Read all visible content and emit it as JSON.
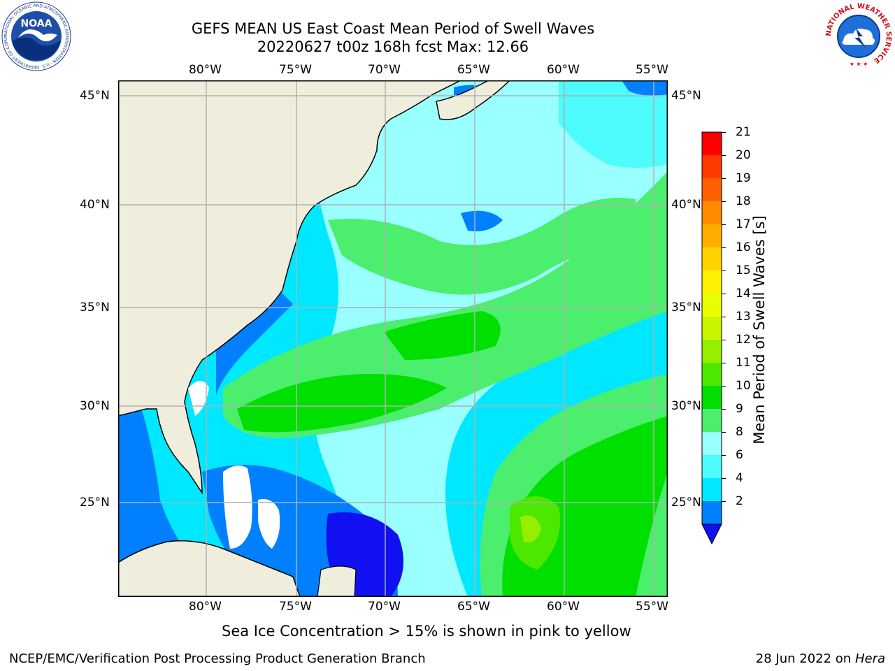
{
  "title": {
    "line1": "GEFS MEAN US East Coast Mean Period of Swell Waves",
    "line2": "20220627 t00z 168h fcst   Max: 12.66"
  },
  "map": {
    "lon_labels": [
      "80°W",
      "75°W",
      "70°W",
      "65°W",
      "60°W",
      "55°W"
    ],
    "lat_labels": [
      "45°N",
      "40°N",
      "35°N",
      "30°N",
      "25°N"
    ],
    "land_color": "#efeedc",
    "grid_color": "#b0b0b0"
  },
  "colorbar": {
    "label": "Mean Period of Swell Waves [s]",
    "ticks": [
      "21",
      "20",
      "19",
      "18",
      "17",
      "16",
      "15",
      "14",
      "13",
      "12",
      "11",
      "10",
      "9",
      "8",
      "6",
      "4",
      "2"
    ],
    "colors": [
      "#ff0000",
      "#ff3a00",
      "#ff6000",
      "#ff8a00",
      "#ffae00",
      "#ffd300",
      "#fff200",
      "#e8ff00",
      "#c8f500",
      "#96ee00",
      "#4de800",
      "#00e000",
      "#4cee6e",
      "#99ffff",
      "#4dfcfc",
      "#00e8ff",
      "#0080ff"
    ],
    "under_color": "#1010f0"
  },
  "caption": "Sea Ice Concentration > 15% is shown in pink to yellow",
  "footer": {
    "left": "NCEP/EMC/Verification Post Processing Product Generation Branch",
    "date": "28 Jun 2022 on",
    "machine": "Hera"
  },
  "logos": {
    "noaa": "NOAA",
    "noaa_ring": "NATIONAL OCEANIC AND ATMOSPHERIC ADMINISTRATION · U.S. DEPARTMENT OF COMMERCE",
    "nws_ring": "NATIONAL WEATHER SERVICE"
  }
}
